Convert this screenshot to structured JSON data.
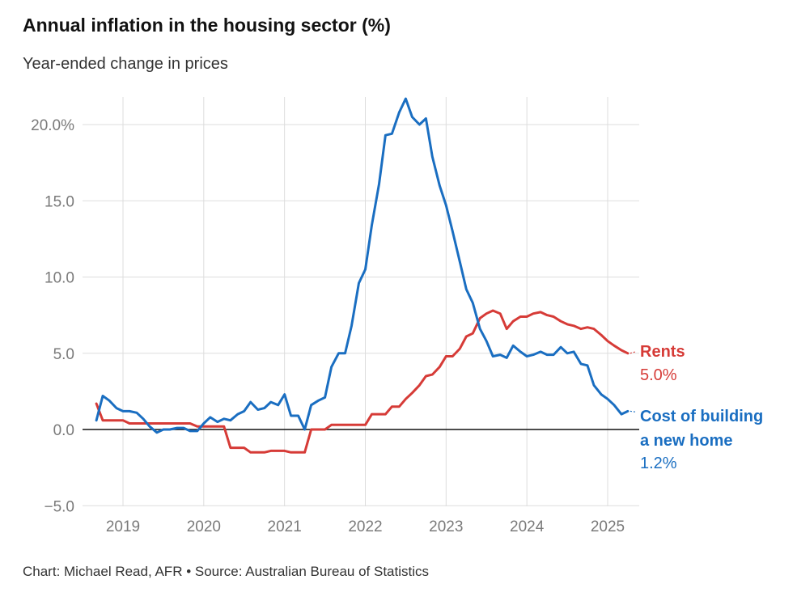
{
  "title": "Annual inflation in the housing sector (%)",
  "subtitle": "Year-ended change in prices",
  "footer": "Chart: Michael Read, AFR • Source: Australian Bureau of Statistics",
  "colors": {
    "rents": "#d63b37",
    "building": "#1a6ec1",
    "grid": "#dddddd",
    "zero": "#111111"
  },
  "chart_data": {
    "type": "line",
    "title": "Annual inflation in the housing sector (%)",
    "subtitle": "Year-ended change in prices",
    "xlabel": "",
    "ylabel": "",
    "xlim": [
      2018.67,
      2025.42
    ],
    "ylim": [
      -5,
      22
    ],
    "grid": true,
    "y_ticks": [
      -5,
      0,
      5,
      10,
      15,
      20
    ],
    "y_tick_labels": [
      "−5.0",
      "0.0",
      "5.0",
      "10.0",
      "15.0",
      "20.0%"
    ],
    "x_ticks": [
      2019,
      2020,
      2021,
      2022,
      2023,
      2024,
      2025
    ],
    "x_tick_labels": [
      "2019",
      "2020",
      "2021",
      "2022",
      "2023",
      "2024",
      "2025"
    ],
    "series": [
      {
        "name": "Rents",
        "end_label": "Rents",
        "end_value_label": "5.0%",
        "x": [
          2018.67,
          2018.75,
          2018.83,
          2018.92,
          2019.0,
          2019.08,
          2019.17,
          2019.25,
          2019.33,
          2019.42,
          2019.5,
          2019.58,
          2019.67,
          2019.75,
          2019.83,
          2019.92,
          2020.0,
          2020.08,
          2020.17,
          2020.25,
          2020.33,
          2020.42,
          2020.5,
          2020.58,
          2020.67,
          2020.75,
          2020.83,
          2020.92,
          2021.0,
          2021.08,
          2021.17,
          2021.25,
          2021.33,
          2021.42,
          2021.5,
          2021.58,
          2021.67,
          2021.75,
          2021.83,
          2021.92,
          2022.0,
          2022.08,
          2022.17,
          2022.25,
          2022.33,
          2022.42,
          2022.5,
          2022.58,
          2022.67,
          2022.75,
          2022.83,
          2022.92,
          2023.0,
          2023.08,
          2023.17,
          2023.25,
          2023.33,
          2023.42,
          2023.5,
          2023.58,
          2023.67,
          2023.75,
          2023.83,
          2023.92,
          2024.0,
          2024.08,
          2024.17,
          2024.25,
          2024.33,
          2024.42,
          2024.5,
          2024.58,
          2024.67,
          2024.75,
          2024.83,
          2024.92,
          2025.0,
          2025.08,
          2025.17,
          2025.25
        ],
        "values": [
          1.7,
          0.6,
          0.6,
          0.6,
          0.6,
          0.4,
          0.4,
          0.4,
          0.4,
          0.4,
          0.4,
          0.4,
          0.4,
          0.4,
          0.4,
          0.2,
          0.2,
          0.2,
          0.2,
          0.2,
          -1.2,
          -1.2,
          -1.2,
          -1.5,
          -1.5,
          -1.5,
          -1.4,
          -1.4,
          -1.4,
          -1.5,
          -1.5,
          -1.5,
          0.0,
          0.0,
          0.0,
          0.3,
          0.3,
          0.3,
          0.3,
          0.3,
          0.3,
          1.0,
          1.0,
          1.0,
          1.5,
          1.5,
          2.0,
          2.4,
          2.9,
          3.5,
          3.6,
          4.1,
          4.8,
          4.8,
          5.3,
          6.1,
          6.3,
          7.3,
          7.6,
          7.8,
          7.6,
          6.6,
          7.1,
          7.4,
          7.4,
          7.6,
          7.7,
          7.5,
          7.4,
          7.1,
          6.9,
          6.8,
          6.6,
          6.7,
          6.6,
          6.2,
          5.8,
          5.5,
          5.2,
          5.0
        ]
      },
      {
        "name": "Cost of building a new home",
        "end_label_lines": [
          "Cost of building",
          "a new home"
        ],
        "end_value_label": "1.2%",
        "x": [
          2018.67,
          2018.75,
          2018.83,
          2018.92,
          2019.0,
          2019.08,
          2019.17,
          2019.25,
          2019.33,
          2019.42,
          2019.5,
          2019.58,
          2019.67,
          2019.75,
          2019.83,
          2019.92,
          2020.0,
          2020.08,
          2020.17,
          2020.25,
          2020.33,
          2020.42,
          2020.5,
          2020.58,
          2020.67,
          2020.75,
          2020.83,
          2020.92,
          2021.0,
          2021.08,
          2021.17,
          2021.25,
          2021.33,
          2021.42,
          2021.5,
          2021.58,
          2021.67,
          2021.75,
          2021.83,
          2021.92,
          2022.0,
          2022.08,
          2022.17,
          2022.25,
          2022.33,
          2022.42,
          2022.5,
          2022.58,
          2022.67,
          2022.75,
          2022.83,
          2022.92,
          2023.0,
          2023.08,
          2023.17,
          2023.25,
          2023.33,
          2023.42,
          2023.5,
          2023.58,
          2023.67,
          2023.75,
          2023.83,
          2023.92,
          2024.0,
          2024.08,
          2024.17,
          2024.25,
          2024.33,
          2024.42,
          2024.5,
          2024.58,
          2024.67,
          2024.75,
          2024.83,
          2024.92,
          2025.0,
          2025.08,
          2025.17,
          2025.25
        ],
        "values": [
          0.6,
          2.2,
          1.9,
          1.4,
          1.2,
          1.2,
          1.1,
          0.7,
          0.2,
          -0.2,
          0.0,
          0.0,
          0.1,
          0.1,
          -0.1,
          -0.1,
          0.4,
          0.8,
          0.5,
          0.7,
          0.6,
          1.0,
          1.2,
          1.8,
          1.3,
          1.4,
          1.8,
          1.6,
          2.3,
          0.9,
          0.9,
          0.0,
          1.6,
          1.9,
          2.1,
          4.1,
          5.0,
          5.0,
          6.8,
          9.6,
          10.5,
          13.4,
          16.1,
          19.3,
          19.4,
          20.8,
          21.7,
          20.5,
          20.0,
          20.4,
          17.9,
          16.0,
          14.7,
          13.0,
          11.0,
          9.2,
          8.3,
          6.6,
          5.8,
          4.8,
          4.9,
          4.7,
          5.5,
          5.1,
          4.8,
          4.9,
          5.1,
          4.9,
          4.9,
          5.4,
          5.0,
          5.1,
          4.3,
          4.2,
          2.9,
          2.3,
          2.0,
          1.6,
          1.0,
          1.2
        ]
      }
    ]
  }
}
